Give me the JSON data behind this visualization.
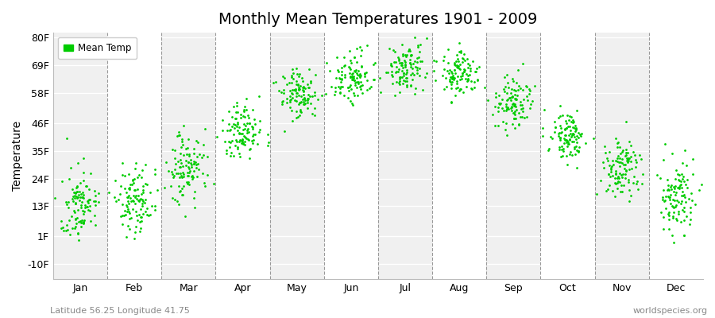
{
  "title": "Monthly Mean Temperatures 1901 - 2009",
  "ylabel": "Temperature",
  "xlabel_bottom_left": "Latitude 56.25 Longitude 41.75",
  "xlabel_bottom_right": "worldspecies.org",
  "legend_label": "Mean Temp",
  "dot_color": "#00cc00",
  "background_color": "#ffffff",
  "stripe_color_odd": "#f0f0f0",
  "stripe_color_even": "#ffffff",
  "ytick_labels": [
    "-10F",
    "1F",
    "13F",
    "24F",
    "35F",
    "46F",
    "58F",
    "69F",
    "80F"
  ],
  "ytick_values": [
    -10,
    1,
    13,
    24,
    35,
    46,
    58,
    69,
    80
  ],
  "months": [
    "Jan",
    "Feb",
    "Mar",
    "Apr",
    "May",
    "Jun",
    "Jul",
    "Aug",
    "Sep",
    "Oct",
    "Nov",
    "Dec"
  ],
  "month_centers": [
    0.5,
    1.5,
    2.5,
    3.5,
    4.5,
    5.5,
    6.5,
    7.5,
    8.5,
    9.5,
    10.5,
    11.5
  ],
  "year_start": 1901,
  "year_end": 2009,
  "monthly_means_F": [
    13,
    15,
    28,
    42,
    57,
    64,
    67,
    65,
    54,
    41,
    28,
    17
  ],
  "monthly_std_F": [
    7,
    7,
    7,
    6,
    5,
    5,
    5,
    5,
    5,
    5,
    6,
    7
  ],
  "seed": 42,
  "dot_size": 4,
  "title_fontsize": 14,
  "axis_fontsize": 9,
  "ylabel_fontsize": 10
}
